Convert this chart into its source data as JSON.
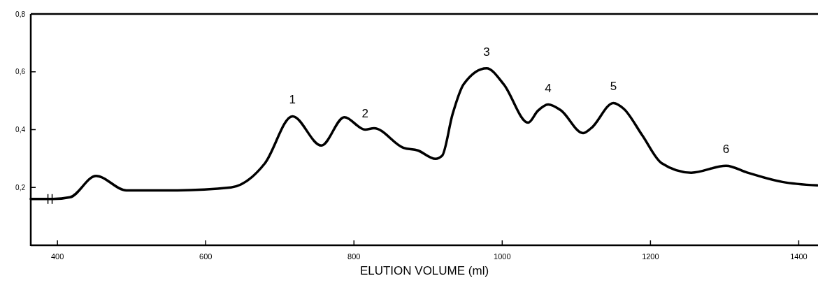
{
  "chart_data": {
    "type": "line",
    "xlabel": "ELUTION VOLUME (ml)",
    "xlim": [
      364,
      1426
    ],
    "xticks": [
      400,
      600,
      800,
      1000,
      1200,
      1400
    ],
    "ylim": [
      0,
      0.8
    ],
    "yticks": [
      {
        "value": 0.2,
        "label": "0,2"
      },
      {
        "value": 0.4,
        "label": "0,4"
      },
      {
        "value": 0.6,
        "label": "0,6"
      },
      {
        "value": 0.8,
        "label": "0,8"
      }
    ],
    "grid": false,
    "marker": "none",
    "line_style": "solid",
    "series": [
      {
        "color": "#000000",
        "x": [
          364,
          388,
          394,
          417,
          452,
          493,
          560,
          634,
          680,
          717,
          756,
          787,
          815,
          827,
          867,
          886,
          910,
          919,
          933,
          948,
          979,
          1002,
          1035,
          1048,
          1062,
          1079,
          1109,
          1120,
          1150,
          1164,
          1189,
          1215,
          1255,
          1302,
          1331,
          1378,
          1425
        ],
        "values": [
          0.16,
          0.16,
          0.16,
          0.166,
          0.24,
          0.19,
          0.19,
          0.2,
          0.284,
          0.446,
          0.345,
          0.443,
          0.4,
          0.405,
          0.337,
          0.328,
          0.299,
          0.31,
          0.453,
          0.557,
          0.612,
          0.557,
          0.424,
          0.465,
          0.487,
          0.467,
          0.388,
          0.405,
          0.492,
          0.472,
          0.38,
          0.284,
          0.251,
          0.275,
          0.251,
          0.219,
          0.207
        ]
      }
    ],
    "annotations": [
      {
        "text": "1",
        "x": 717,
        "y": 0.446
      },
      {
        "text": "2",
        "x": 815,
        "y": 0.4
      },
      {
        "text": "3",
        "x": 979,
        "y": 0.612
      },
      {
        "text": "4",
        "x": 1062,
        "y": 0.487
      },
      {
        "text": "5",
        "x": 1150,
        "y": 0.492
      },
      {
        "text": "6",
        "x": 1302,
        "y": 0.275
      }
    ]
  }
}
